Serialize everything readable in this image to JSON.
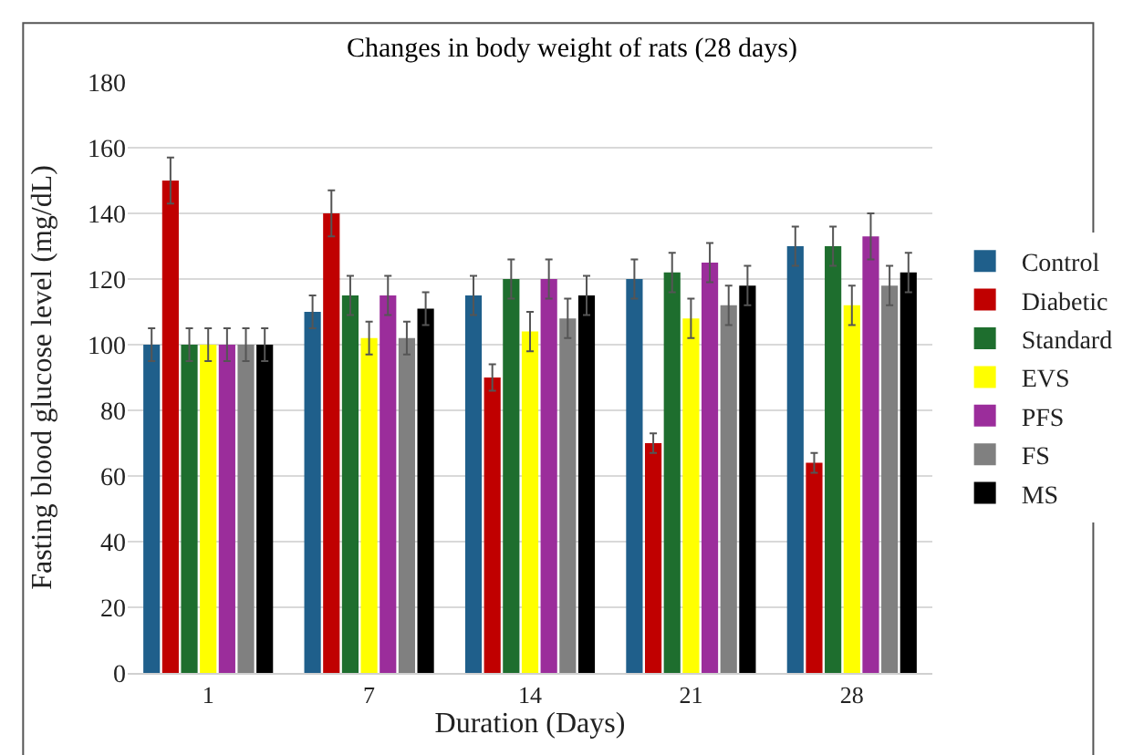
{
  "chart_data": {
    "type": "bar",
    "title": "Changes in body weight of rats (28 days)",
    "xlabel": "Duration (Days)",
    "ylabel": "Fasting blood glucose level (mg/dL)",
    "categories": [
      "1",
      "7",
      "14",
      "21",
      "28"
    ],
    "series": [
      {
        "name": "Control",
        "color": "#1f5f8b",
        "values": [
          100,
          110,
          115,
          120,
          130
        ],
        "errors": [
          5,
          5,
          6,
          6,
          6
        ]
      },
      {
        "name": "Diabetic",
        "color": "#c00000",
        "values": [
          150,
          140,
          90,
          70,
          64
        ],
        "errors": [
          7,
          7,
          4,
          3,
          3
        ]
      },
      {
        "name": "Standard",
        "color": "#1e6e2e",
        "values": [
          100,
          115,
          120,
          122,
          130
        ],
        "errors": [
          5,
          6,
          6,
          6,
          6
        ]
      },
      {
        "name": "EVS",
        "color": "#ffff00",
        "values": [
          100,
          102,
          104,
          108,
          112
        ],
        "errors": [
          5,
          5,
          6,
          6,
          6
        ]
      },
      {
        "name": "PFS",
        "color": "#9b2d9b",
        "values": [
          100,
          115,
          120,
          125,
          133
        ],
        "errors": [
          5,
          6,
          6,
          6,
          7
        ]
      },
      {
        "name": "FS",
        "color": "#808080",
        "values": [
          100,
          102,
          108,
          112,
          118
        ],
        "errors": [
          5,
          5,
          6,
          6,
          6
        ]
      },
      {
        "name": "MS",
        "color": "#000000",
        "values": [
          100,
          111,
          115,
          118,
          122
        ],
        "errors": [
          5,
          5,
          6,
          6,
          6
        ]
      }
    ],
    "ylim": [
      0,
      180
    ],
    "yticks": [
      0,
      20,
      40,
      60,
      80,
      100,
      120,
      140,
      160,
      180
    ],
    "grid": "y",
    "legend": "right"
  }
}
